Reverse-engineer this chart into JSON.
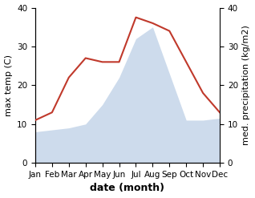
{
  "months": [
    "Jan",
    "Feb",
    "Mar",
    "Apr",
    "May",
    "Jun",
    "Jul",
    "Aug",
    "Sep",
    "Oct",
    "Nov",
    "Dec"
  ],
  "month_indices": [
    1,
    2,
    3,
    4,
    5,
    6,
    7,
    8,
    9,
    10,
    11,
    12
  ],
  "temp_max": [
    11,
    13,
    22,
    27,
    26,
    26,
    37.5,
    36,
    34,
    26,
    18,
    13
  ],
  "precipitation": [
    8,
    8.5,
    9,
    10,
    15,
    22,
    32,
    35,
    23,
    11,
    11,
    11.5
  ],
  "temp_color": "#c0392b",
  "precip_color": "#b8cce4",
  "ylim_left": [
    0,
    40
  ],
  "ylim_right": [
    0,
    40
  ],
  "xlabel": "date (month)",
  "ylabel_left": "max temp (C)",
  "ylabel_right": "med. precipitation (kg/m2)",
  "label_fontsize": 8,
  "tick_fontsize": 7.5,
  "xlabel_fontsize": 9,
  "bg_color": "#ffffff"
}
